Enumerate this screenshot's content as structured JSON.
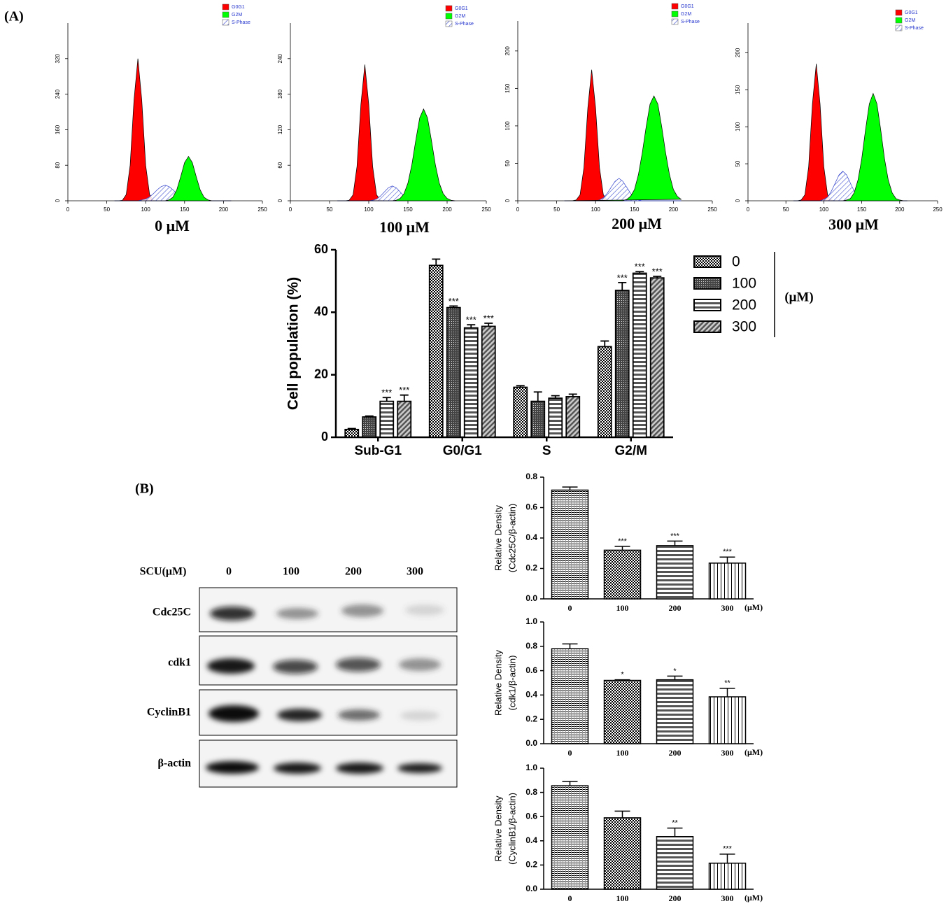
{
  "labels": {
    "a": "(A)",
    "b": "(B)"
  },
  "blot": {
    "header": "SCU(μM)",
    "lanes": [
      "0",
      "100",
      "200",
      "300"
    ],
    "rows": [
      "Cdc25C",
      "cdk1",
      "CyclinB1",
      "β-actin"
    ]
  },
  "chart_data": [
    {
      "type": "area",
      "title": "0 μM",
      "xlim": [
        0,
        250
      ],
      "xticks": [
        0,
        50,
        100,
        150,
        200,
        250
      ],
      "ylim": [
        0,
        400
      ],
      "yticks": [
        0,
        80,
        160,
        240,
        320
      ],
      "x": [
        60,
        65,
        70,
        75,
        80,
        85,
        90,
        95,
        100,
        105,
        110,
        115,
        120,
        125,
        130,
        135,
        140,
        145,
        150,
        155,
        160,
        165,
        170,
        175,
        180,
        185,
        190,
        195,
        200,
        205,
        210
      ],
      "series": [
        {
          "name": "G0G1",
          "color": "#ff0000",
          "values": [
            0,
            0,
            1,
            14,
            80,
            227,
            320,
            227,
            80,
            14,
            1,
            0,
            0,
            0,
            0,
            0,
            0,
            0,
            0,
            0,
            0,
            0,
            0,
            0,
            0,
            0,
            0,
            0,
            0,
            0,
            0
          ]
        },
        {
          "name": "G2M",
          "color": "#00ff00",
          "values": [
            0,
            0,
            0,
            0,
            0,
            0,
            0,
            0,
            0,
            0,
            0,
            0,
            0,
            0,
            2,
            8,
            25,
            54,
            86,
            100,
            86,
            54,
            25,
            8,
            2,
            0,
            0,
            0,
            0,
            0,
            0
          ]
        },
        {
          "name": "S-Phase",
          "color": "#3344cc",
          "values": [
            0,
            0,
            0,
            0,
            0,
            0,
            0,
            2,
            4,
            9,
            16,
            25,
            32,
            35,
            32,
            25,
            16,
            9,
            4,
            2,
            0,
            0,
            0,
            0,
            0,
            0,
            0,
            0,
            0,
            0,
            0
          ]
        }
      ]
    },
    {
      "type": "area",
      "title": "100 μM",
      "xlim": [
        0,
        250
      ],
      "xticks": [
        0,
        50,
        100,
        150,
        200,
        250
      ],
      "ylim": [
        0,
        300
      ],
      "yticks": [
        0,
        60,
        120,
        180,
        240
      ],
      "x": [
        60,
        65,
        70,
        75,
        80,
        85,
        90,
        95,
        100,
        105,
        110,
        115,
        120,
        125,
        130,
        135,
        140,
        145,
        150,
        155,
        160,
        165,
        170,
        175,
        180,
        185,
        190,
        195,
        200,
        205,
        210
      ],
      "series": [
        {
          "name": "G0G1",
          "color": "#ff0000",
          "values": [
            0,
            0,
            0,
            1,
            10,
            58,
            163,
            230,
            163,
            58,
            10,
            1,
            0,
            0,
            0,
            0,
            0,
            0,
            0,
            0,
            0,
            0,
            0,
            0,
            0,
            0,
            0,
            0,
            0,
            0,
            0
          ]
        },
        {
          "name": "G2M",
          "color": "#00ff00",
          "values": [
            0,
            0,
            0,
            0,
            0,
            0,
            0,
            0,
            0,
            0,
            0,
            0,
            0,
            0,
            0,
            1,
            4,
            12,
            30,
            61,
            102,
            140,
            155,
            140,
            102,
            61,
            30,
            12,
            4,
            1,
            0
          ]
        },
        {
          "name": "S-Phase",
          "color": "#3344cc",
          "values": [
            0,
            0,
            0,
            0,
            0,
            0,
            0,
            0,
            0,
            1,
            3,
            8,
            15,
            22,
            25,
            22,
            15,
            8,
            3,
            1,
            0,
            0,
            0,
            0,
            0,
            0,
            0,
            0,
            0,
            0,
            0
          ]
        }
      ]
    },
    {
      "type": "area",
      "title": "200 μM",
      "xlim": [
        0,
        250
      ],
      "xticks": [
        0,
        50,
        100,
        150,
        200,
        250
      ],
      "ylim": [
        0,
        240
      ],
      "yticks": [
        0,
        50,
        100,
        150,
        200
      ],
      "x": [
        60,
        65,
        70,
        75,
        80,
        85,
        90,
        95,
        100,
        105,
        110,
        115,
        120,
        125,
        130,
        135,
        140,
        145,
        150,
        155,
        160,
        165,
        170,
        175,
        180,
        185,
        190,
        195,
        200,
        205,
        210
      ],
      "series": [
        {
          "name": "G0G1",
          "color": "#ff0000",
          "values": [
            0,
            0,
            0,
            1,
            8,
            44,
            124,
            175,
            124,
            44,
            8,
            1,
            0,
            0,
            0,
            0,
            0,
            0,
            0,
            0,
            0,
            0,
            0,
            0,
            0,
            0,
            0,
            0,
            0,
            0,
            0
          ]
        },
        {
          "name": "G2M",
          "color": "#00ff00",
          "values": [
            0,
            0,
            0,
            0,
            0,
            0,
            0,
            0,
            0,
            0,
            0,
            0,
            0,
            0,
            0,
            0,
            2,
            6,
            15,
            35,
            64,
            99,
            129,
            140,
            129,
            99,
            64,
            35,
            15,
            6,
            2
          ]
        },
        {
          "name": "S-Phase",
          "color": "#3344cc",
          "values": [
            0,
            0,
            0,
            0,
            0,
            0,
            0,
            0,
            0,
            1,
            4,
            10,
            18,
            26,
            30,
            26,
            18,
            10,
            4,
            1,
            0,
            0,
            0,
            0,
            0,
            0,
            0,
            0,
            0,
            0,
            0
          ]
        }
      ]
    },
    {
      "type": "area",
      "title": "300 μM",
      "xlim": [
        0,
        250
      ],
      "xticks": [
        0,
        50,
        100,
        150,
        200,
        250
      ],
      "ylim": [
        0,
        240
      ],
      "yticks": [
        0,
        50,
        100,
        150,
        200
      ],
      "x": [
        60,
        65,
        70,
        75,
        80,
        85,
        90,
        95,
        100,
        105,
        110,
        115,
        120,
        125,
        130,
        135,
        140,
        145,
        150,
        155,
        160,
        165,
        170,
        175,
        180,
        185,
        190,
        195,
        200,
        205,
        210
      ],
      "series": [
        {
          "name": "G0G1",
          "color": "#ff0000",
          "values": [
            0,
            0,
            1,
            8,
            46,
            131,
            185,
            131,
            46,
            8,
            1,
            0,
            0,
            0,
            0,
            0,
            0,
            0,
            0,
            0,
            0,
            0,
            0,
            0,
            0,
            0,
            0,
            0,
            0,
            0,
            0
          ]
        },
        {
          "name": "G2M",
          "color": "#00ff00",
          "values": [
            0,
            0,
            0,
            0,
            0,
            0,
            0,
            0,
            0,
            0,
            0,
            0,
            0,
            0,
            1,
            3,
            11,
            28,
            57,
            96,
            131,
            145,
            131,
            96,
            57,
            28,
            11,
            3,
            1,
            0,
            0
          ]
        },
        {
          "name": "S-Phase",
          "color": "#3344cc",
          "values": [
            0,
            0,
            0,
            0,
            0,
            0,
            0,
            0,
            2,
            5,
            13,
            24,
            35,
            40,
            35,
            24,
            13,
            5,
            2,
            0,
            0,
            0,
            0,
            0,
            0,
            0,
            0,
            0,
            0,
            0,
            0
          ]
        }
      ]
    },
    {
      "type": "grouped_bar",
      "y_label": "Cell population (%)",
      "legend_title": "(μM)",
      "ylim": [
        0,
        60
      ],
      "yticks": [
        0,
        20,
        40,
        60
      ],
      "categories": [
        "Sub-G1",
        "G0/G1",
        "S",
        "G2/M"
      ],
      "series": [
        {
          "name": "0",
          "color": "#000000",
          "pattern": "checker",
          "values": [
            2.5,
            55,
            16,
            29
          ],
          "errors": [
            0.3,
            2,
            0.5,
            1.8
          ],
          "significance": [
            null,
            null,
            null,
            null
          ]
        },
        {
          "name": "100",
          "color": "#000000",
          "pattern": "dense",
          "values": [
            6.5,
            41.5,
            11.5,
            47
          ],
          "errors": [
            0.3,
            0.5,
            3,
            2.5
          ],
          "significance": [
            null,
            "***",
            null,
            "***"
          ]
        },
        {
          "name": "200",
          "color": "#000000",
          "pattern": "hstripe",
          "values": [
            11.5,
            35,
            12.5,
            52.5
          ],
          "errors": [
            1.2,
            1,
            0.8,
            0.5
          ],
          "significance": [
            "***",
            "***",
            null,
            "***"
          ]
        },
        {
          "name": "300",
          "color": "#000000",
          "pattern": "diag",
          "values": [
            11.5,
            35.5,
            13,
            51
          ],
          "errors": [
            2,
            1,
            0.8,
            0.5
          ],
          "significance": [
            "***",
            "***",
            null,
            "***"
          ]
        }
      ]
    },
    {
      "type": "bar",
      "y_label": [
        "Relative Density",
        "(Cdc25C/β-actin)"
      ],
      "unit_label": "(μM)",
      "ylim": [
        0,
        0.8
      ],
      "yticks": [
        {
          "value": 0,
          "label": "0.0"
        },
        0.2,
        0.4,
        0.6,
        0.8
      ],
      "categories": [
        "0",
        "100",
        "200",
        "300"
      ],
      "color": "#000000",
      "patterns": [
        "hfine",
        "checker",
        "hstripe",
        "vline"
      ],
      "values": [
        0.715,
        0.32,
        0.35,
        0.235
      ],
      "errors": [
        0.02,
        0.025,
        0.03,
        0.04
      ],
      "significance": [
        null,
        "***",
        "***",
        "***"
      ]
    },
    {
      "type": "bar",
      "y_label": [
        "Relative Density",
        "(cdk1/β-actin)"
      ],
      "unit_label": "(μM)",
      "ylim": [
        0,
        1
      ],
      "yticks": [
        {
          "value": 0,
          "label": "0.0"
        },
        0.2,
        0.4,
        0.6,
        0.8,
        {
          "value": 1,
          "label": "1.0"
        }
      ],
      "categories": [
        "0",
        "100",
        "200",
        "300"
      ],
      "color": "#000000",
      "patterns": [
        "hfine",
        "checker",
        "hstripe",
        "vline"
      ],
      "values": [
        0.78,
        0.52,
        0.525,
        0.385
      ],
      "errors": [
        0.04,
        0.005,
        0.03,
        0.07
      ],
      "significance": [
        null,
        "*",
        "*",
        "**"
      ]
    },
    {
      "type": "bar",
      "y_label": [
        "Relative Density",
        "(CyclinB1/β-actin)"
      ],
      "unit_label": "(μM)",
      "ylim": [
        0,
        1
      ],
      "yticks": [
        {
          "value": 0,
          "label": "0.0"
        },
        0.2,
        0.4,
        0.6,
        0.8,
        {
          "value": 1,
          "label": "1.0"
        }
      ],
      "categories": [
        "0",
        "100",
        "200",
        "300"
      ],
      "color": "#000000",
      "patterns": [
        "hfine",
        "checker",
        "hstripe",
        "vline"
      ],
      "values": [
        0.855,
        0.59,
        0.435,
        0.215
      ],
      "errors": [
        0.035,
        0.055,
        0.07,
        0.075
      ],
      "significance": [
        null,
        null,
        "**",
        "***"
      ]
    }
  ]
}
